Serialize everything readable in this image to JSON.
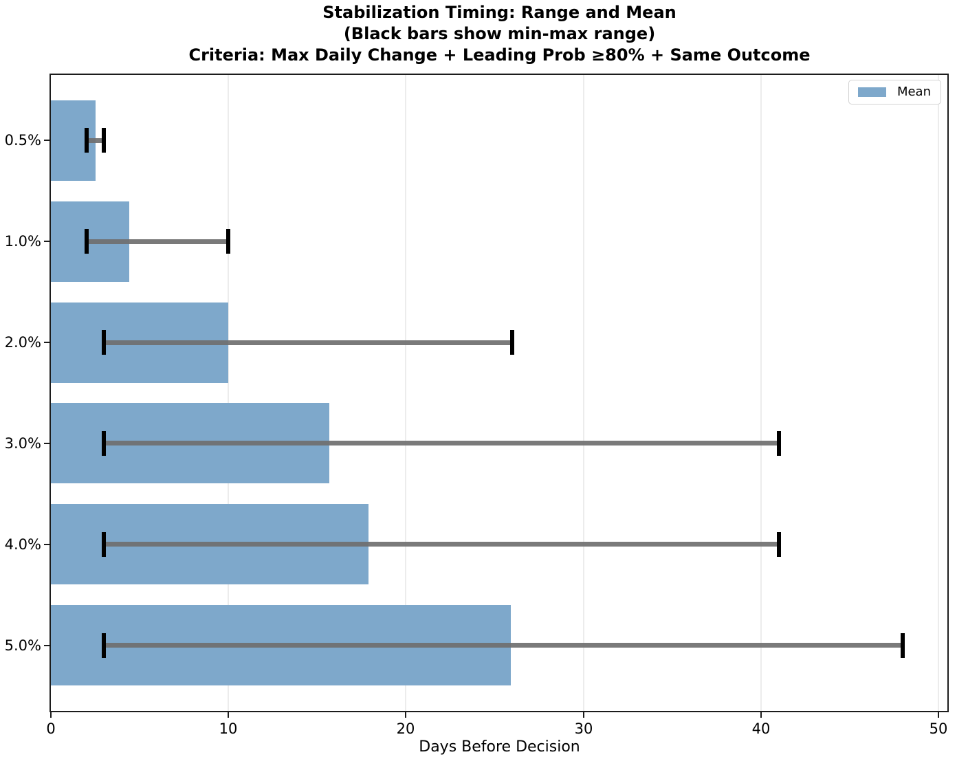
{
  "chart_data": {
    "type": "bar",
    "orientation": "horizontal",
    "title_lines": [
      "Stabilization Timing: Range and Mean",
      "(Black bars show min-max range)",
      "Criteria: Max Daily Change + Leading Prob ≥80% + Same Outcome"
    ],
    "xlabel": "Days Before Decision",
    "ylabel": "",
    "categories": [
      "0.5%",
      "1.0%",
      "2.0%",
      "3.0%",
      "4.0%",
      "5.0%"
    ],
    "series": [
      {
        "name": "Mean",
        "values": [
          2.5,
          4.4,
          10.0,
          15.7,
          17.9,
          25.9
        ]
      }
    ],
    "error_range": {
      "label": "min-max range",
      "min": [
        2,
        2,
        3,
        3,
        3,
        3
      ],
      "max": [
        3,
        10,
        26,
        41,
        41,
        48
      ]
    },
    "xlim": [
      0,
      50.5
    ],
    "xticks": [
      "0",
      "10",
      "20",
      "30",
      "40",
      "50"
    ],
    "grid": "vertical-only",
    "legend": {
      "entries": [
        "Mean"
      ],
      "position": "upper-right"
    },
    "colors": {
      "bar": "#7ea8cb",
      "error_line": "#6f6f6f",
      "error_cap": "#000000",
      "grid": "#ececec",
      "spine": "#1c1c1c",
      "background": "#ffffff",
      "text": "#000000"
    }
  }
}
